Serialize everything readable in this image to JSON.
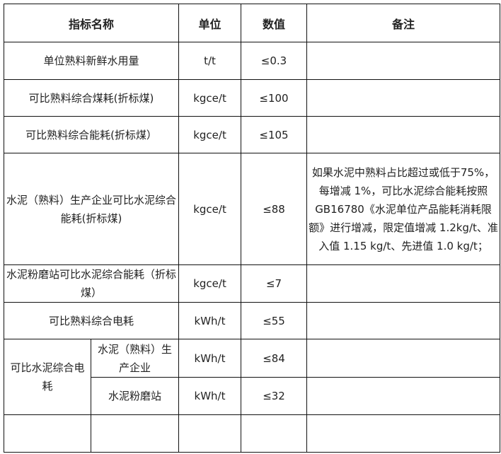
{
  "header": {
    "name": "指标名称",
    "unit": "单位",
    "value": "数值",
    "note": "备注"
  },
  "rows": [
    {
      "name": "单位熟料新鲜水用量",
      "unit": "t/t",
      "value": "≤0.3",
      "note": ""
    },
    {
      "name": "可比熟料综合煤耗(折标煤)",
      "unit": "kgce/t",
      "value": "≤100",
      "note": ""
    },
    {
      "name": "可比熟料综合能耗(折标煤）",
      "unit": "kgce/t",
      "value": "≤105",
      "note": ""
    },
    {
      "name": "水泥（熟料）生产企业可比水泥综合能耗(折标煤)",
      "unit": "kgce/t",
      "value": "≤88",
      "note": "如果水泥中熟料占比超过或低于75%，每增减 1%，可比水泥综合能耗按照 GB16780《水泥单位产品能耗消耗限额》进行增减，限定值增减 1.2kg/t、准入值 1.15 kg/t、先进值 1.0 kg/t；"
    },
    {
      "name": "水泥粉磨站可比水泥综合能耗（折标煤）",
      "unit": "kgce/t",
      "value": "≤7",
      "note": ""
    },
    {
      "name": "可比熟料综合电耗",
      "unit": "kWh/t",
      "value": "≤55",
      "note": ""
    }
  ],
  "group": {
    "name": "可比水泥综合电耗",
    "subrows": [
      {
        "name": "水泥（熟料）生产企业",
        "unit": "kWh/t",
        "value": "≤84",
        "note": ""
      },
      {
        "name": "水泥粉磨站",
        "unit": "kWh/t",
        "value": "≤32",
        "note": ""
      }
    ]
  }
}
